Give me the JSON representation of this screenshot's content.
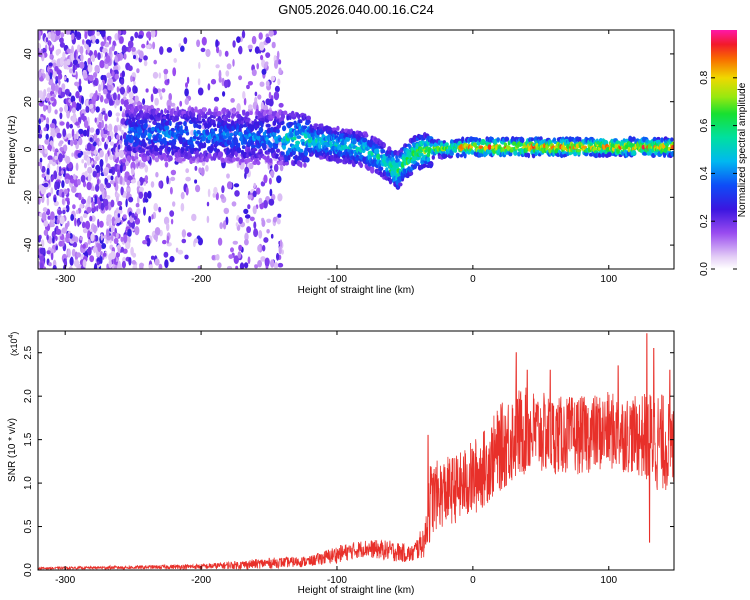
{
  "figure": {
    "title": "GN05.2026.040.00.16.C24"
  },
  "chart_data": [
    {
      "type": "heatmap",
      "name": "spectrogram",
      "xlabel": "Height of straight line (km)",
      "ylabel": "Frequency (Hz)",
      "xlim": [
        -320,
        148
      ],
      "ylim": [
        -50,
        50
      ],
      "xticks": [
        -300,
        -200,
        -100,
        0,
        100
      ],
      "yticks": [
        -40,
        -20,
        0,
        20,
        40
      ],
      "ytick_labels": [
        "-40",
        "-20",
        "0",
        "20",
        "40"
      ],
      "colorbar": {
        "label": "Normalized spectral amplitude",
        "range": [
          0,
          1
        ],
        "ticks": [
          0.0,
          0.2,
          0.4,
          0.6,
          0.8
        ],
        "tick_labels": [
          "0.0",
          "0.2",
          "0.4",
          "0.6",
          "0.8"
        ]
      },
      "ridge": {
        "x": [
          -250,
          -200,
          -150,
          -120,
          -100,
          -80,
          -70,
          -60,
          -55,
          -50,
          -45,
          -40,
          -30,
          -20,
          0,
          50,
          100,
          148
        ],
        "y": [
          7,
          6,
          5,
          4,
          2,
          0,
          -3,
          -7,
          -9,
          -5,
          -3,
          -1,
          0,
          0.5,
          1,
          1,
          1,
          1
        ]
      },
      "noise_region_x": [
        -320,
        -140
      ]
    },
    {
      "type": "line",
      "name": "snr",
      "xlabel": "Height of straight line (km)",
      "ylabel": "SNR (10 * v/v)",
      "scale_note": "(x10",
      "scale_exp": "4",
      "scale_close": ")",
      "xlim": [
        -320,
        148
      ],
      "ylim": [
        0,
        2.75
      ],
      "xticks": [
        -300,
        -200,
        -100,
        0,
        100
      ],
      "yticks": [
        0.0,
        0.5,
        1.0,
        1.5,
        2.0,
        2.5
      ],
      "ytick_labels": [
        "0.0",
        "0.5",
        "1.0",
        "1.5",
        "2.0",
        "2.5"
      ],
      "color": "#e8302a",
      "envelope": {
        "x": [
          -320,
          -250,
          -200,
          -170,
          -150,
          -120,
          -100,
          -80,
          -60,
          -45,
          -35,
          -33,
          -28,
          -20,
          -10,
          0,
          10,
          20,
          30,
          40,
          60,
          80,
          100,
          120,
          135,
          148
        ],
        "mean": [
          0.02,
          0.03,
          0.04,
          0.06,
          0.08,
          0.1,
          0.18,
          0.25,
          0.22,
          0.18,
          0.35,
          0.75,
          0.85,
          0.9,
          0.95,
          1.05,
          1.2,
          1.4,
          1.55,
          1.6,
          1.55,
          1.55,
          1.6,
          1.55,
          1.5,
          1.4
        ],
        "amp": [
          0.01,
          0.02,
          0.03,
          0.05,
          0.06,
          0.06,
          0.1,
          0.1,
          0.12,
          0.1,
          0.2,
          0.5,
          0.4,
          0.4,
          0.4,
          0.45,
          0.45,
          0.5,
          0.55,
          0.5,
          0.45,
          0.45,
          0.45,
          0.45,
          0.6,
          0.5
        ]
      },
      "peaks": [
        {
          "x": -33,
          "y": 1.55
        },
        {
          "x": 32,
          "y": 2.5
        },
        {
          "x": 40,
          "y": 2.3
        },
        {
          "x": 57,
          "y": 2.3
        },
        {
          "x": 107,
          "y": 2.35
        },
        {
          "x": 128,
          "y": 2.72
        },
        {
          "x": 133,
          "y": 2.55
        },
        {
          "x": 145,
          "y": 2.3
        },
        {
          "x": 130,
          "y": 0.32
        }
      ]
    }
  ]
}
